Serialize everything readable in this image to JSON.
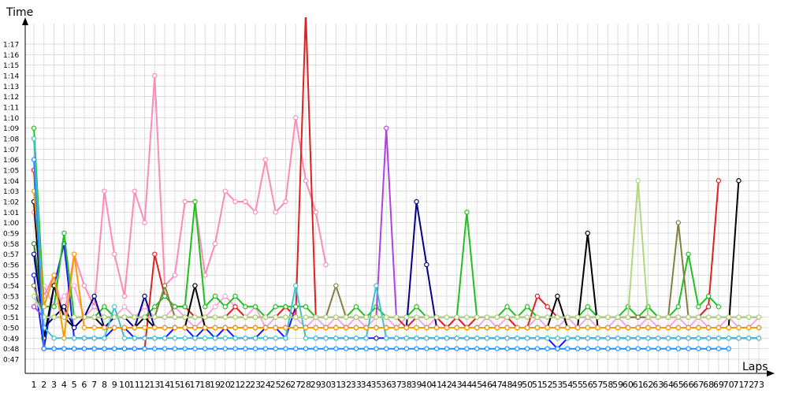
{
  "chart_data": {
    "type": "line",
    "ylabel": "Time",
    "xlabel": "Laps",
    "grid": true,
    "y_ticks": [
      "0:47",
      "0:48",
      "0:49",
      "0:50",
      "0:51",
      "0:52",
      "0:53",
      "0:54",
      "0:55",
      "0:56",
      "0:57",
      "0:58",
      "0:59",
      "1:00",
      "1:01",
      "1:02",
      "1:03",
      "1:04",
      "1:05",
      "1:06",
      "1:07",
      "1:08",
      "1:09",
      "1:10",
      "1:11",
      "1:12",
      "1:13",
      "1:14",
      "1:15",
      "1:16",
      "1:17"
    ],
    "x_tick_labels": [
      "1",
      "2",
      "3",
      "4",
      "5",
      "6",
      "7",
      "8",
      "9",
      "10",
      "11",
      "12",
      "13",
      "14",
      "15",
      "16",
      "17",
      "18",
      "19",
      "20",
      "21",
      "22",
      "23",
      "24",
      "25",
      "26",
      "27",
      "28",
      "29",
      "30",
      "31",
      "32",
      "33",
      "34",
      "35",
      "36",
      "37",
      "38",
      "39",
      "40",
      "41",
      "42",
      "43",
      "44",
      "45",
      "46",
      "47",
      "48",
      "49",
      "50",
      "51",
      "52",
      "53",
      "54",
      "55",
      "56",
      "57",
      "58",
      "59",
      "60",
      "61",
      "62",
      "63",
      "64",
      "65",
      "66",
      "67",
      "68",
      "69",
      "70",
      "71",
      "72",
      "73"
    ],
    "xlim": [
      1,
      73
    ],
    "ylim_seconds": [
      46,
      78
    ],
    "series": [
      {
        "color": "#f7a8d8",
        "values": [
          52,
          54,
          52,
          53,
          54,
          51,
          52,
          51,
          51,
          52,
          51,
          52,
          51,
          51,
          52,
          51,
          50,
          51,
          52,
          53,
          52,
          51,
          52,
          50,
          51,
          52,
          51,
          50,
          51,
          50,
          51,
          50,
          51,
          50,
          51,
          51,
          50,
          51,
          51,
          50,
          51,
          50,
          51,
          50,
          50,
          51,
          50,
          51,
          50,
          50,
          51,
          50,
          50,
          51,
          50,
          51,
          50,
          50,
          51,
          50,
          50,
          51,
          50,
          50,
          51,
          50,
          51,
          50,
          50,
          51,
          50,
          50,
          51
        ]
      },
      {
        "color": "#ff8ab8",
        "values": [
          61,
          53,
          55,
          51,
          57,
          54,
          52,
          63,
          57,
          53,
          63,
          60,
          74,
          54,
          55,
          62,
          62,
          55,
          58,
          63,
          62,
          62,
          61,
          66,
          61,
          62,
          70,
          64,
          61,
          56,
          null,
          null,
          null,
          null,
          null,
          null,
          null,
          null,
          null,
          null,
          null,
          null,
          null,
          null,
          null,
          null,
          null,
          null,
          null,
          null,
          null,
          null,
          null,
          null,
          null,
          null,
          null,
          null,
          null,
          null,
          null,
          null,
          null,
          null,
          null,
          null,
          null,
          null,
          null,
          null,
          null,
          null,
          null
        ]
      },
      {
        "color": "#1a1aff",
        "values": [
          55,
          48,
          54,
          58,
          49,
          49,
          49,
          49,
          50,
          50,
          49,
          49,
          49,
          49,
          50,
          50,
          49,
          50,
          49,
          50,
          49,
          49,
          49,
          50,
          50,
          49,
          52,
          null,
          49,
          49,
          49,
          49,
          49,
          49,
          49,
          49,
          49,
          49,
          49,
          49,
          49,
          49,
          49,
          49,
          49,
          49,
          49,
          49,
          49,
          49,
          49,
          49,
          48,
          49,
          49,
          49,
          49,
          49,
          49,
          49,
          49,
          49,
          49,
          49,
          49,
          49,
          49,
          49,
          49,
          49,
          49,
          49,
          49
        ]
      },
      {
        "color": "#e02020",
        "values": [
          65,
          48,
          48,
          48,
          48,
          48,
          48,
          48,
          48,
          48,
          48,
          48,
          57,
          53,
          52,
          52,
          51,
          51,
          51,
          51,
          52,
          51,
          51,
          51,
          51,
          52,
          51,
          80,
          51,
          51,
          51,
          51,
          51,
          51,
          51,
          51,
          51,
          50,
          51,
          51,
          51,
          50,
          51,
          50,
          51,
          51,
          51,
          51,
          50,
          50,
          53,
          52,
          51,
          51,
          51,
          51,
          51,
          51,
          51,
          51,
          51,
          51,
          51,
          51,
          51,
          51,
          51,
          52,
          64,
          null,
          null,
          null,
          null
        ]
      },
      {
        "color": "#20c020",
        "values": [
          69,
          52,
          52,
          59,
          51,
          51,
          51,
          52,
          51,
          51,
          51,
          51,
          52,
          53,
          52,
          52,
          62,
          52,
          53,
          52,
          53,
          52,
          52,
          51,
          52,
          52,
          52,
          52,
          51,
          51,
          51,
          51,
          52,
          51,
          52,
          51,
          51,
          51,
          52,
          51,
          51,
          51,
          51,
          61,
          51,
          51,
          51,
          52,
          51,
          52,
          51,
          51,
          51,
          51,
          51,
          52,
          51,
          51,
          51,
          52,
          51,
          52,
          51,
          51,
          52,
          57,
          52,
          53,
          52,
          null,
          null,
          null,
          null
        ]
      },
      {
        "color": "#2a8a2a",
        "values": [
          58,
          51,
          51,
          51,
          51,
          51,
          51,
          51,
          51,
          51,
          51,
          51,
          51,
          51,
          51,
          51,
          51,
          51,
          null,
          null,
          null,
          null,
          null,
          null,
          null,
          null,
          null,
          null,
          null,
          null,
          null,
          null,
          null,
          null,
          null,
          null,
          null,
          null,
          null,
          null,
          null,
          null,
          null,
          null,
          null,
          null,
          null,
          null,
          null,
          null,
          null,
          null,
          null,
          null,
          null,
          null,
          null,
          null,
          null,
          null,
          null,
          null,
          null,
          null,
          null,
          null,
          null,
          null,
          null,
          null,
          null,
          null,
          null
        ]
      },
      {
        "color": "#b040e0",
        "values": [
          52,
          51,
          51,
          51,
          51,
          51,
          51,
          51,
          51,
          51,
          51,
          51,
          51,
          51,
          51,
          51,
          51,
          51,
          51,
          51,
          51,
          51,
          51,
          51,
          51,
          51,
          51,
          51,
          51,
          51,
          51,
          51,
          51,
          51,
          51,
          69,
          51,
          51,
          51,
          51,
          51,
          51,
          51,
          51,
          51,
          51,
          51,
          51,
          51,
          51,
          51,
          51,
          51,
          51,
          51,
          51,
          51,
          51,
          51,
          51,
          51,
          51,
          51,
          51,
          51,
          51,
          51,
          51,
          51,
          51,
          51,
          51,
          51
        ]
      },
      {
        "color": "#000000",
        "values": [
          62,
          49,
          54,
          51,
          50,
          51,
          51,
          50,
          50,
          50,
          50,
          51,
          50,
          50,
          50,
          50,
          54,
          50,
          50,
          50,
          50,
          50,
          50,
          50,
          50,
          50,
          50,
          50,
          50,
          50,
          50,
          50,
          50,
          50,
          50,
          50,
          50,
          50,
          50,
          50,
          50,
          50,
          50,
          50,
          50,
          50,
          50,
          50,
          50,
          50,
          50,
          50,
          53,
          50,
          50,
          59,
          50,
          50,
          50,
          50,
          50,
          50,
          50,
          50,
          50,
          50,
          50,
          50,
          50,
          50,
          64,
          null,
          null
        ]
      },
      {
        "color": "#00008b",
        "values": [
          57,
          50,
          51,
          52,
          50,
          51,
          53,
          50,
          51,
          51,
          50,
          53,
          50,
          50,
          50,
          50,
          50,
          50,
          50,
          50,
          50,
          50,
          50,
          50,
          50,
          50,
          50,
          50,
          50,
          50,
          50,
          50,
          50,
          50,
          50,
          50,
          50,
          50,
          62,
          56,
          50,
          50,
          50,
          50,
          50,
          50,
          50,
          50,
          50,
          50,
          50,
          50,
          50,
          50,
          50,
          50,
          50,
          50,
          50,
          50,
          50,
          50,
          50,
          50,
          50,
          50,
          50,
          50,
          50,
          50,
          50,
          50,
          50
        ]
      },
      {
        "color": "#808040",
        "values": [
          54,
          51,
          51,
          51,
          51,
          51,
          51,
          51,
          51,
          51,
          51,
          51,
          51,
          54,
          51,
          51,
          51,
          51,
          51,
          51,
          51,
          51,
          51,
          51,
          51,
          51,
          51,
          51,
          51,
          51,
          54,
          51,
          51,
          51,
          51,
          51,
          51,
          51,
          51,
          51,
          51,
          51,
          51,
          51,
          51,
          51,
          51,
          51,
          51,
          51,
          51,
          51,
          51,
          51,
          51,
          51,
          51,
          51,
          51,
          51,
          51,
          51,
          51,
          51,
          60,
          51,
          51,
          51,
          51,
          51,
          51,
          51,
          51
        ]
      },
      {
        "color": "#40c0d0",
        "values": [
          68,
          50,
          49,
          49,
          49,
          49,
          49,
          49,
          52,
          49,
          49,
          49,
          49,
          49,
          49,
          49,
          49,
          49,
          49,
          49,
          49,
          49,
          49,
          49,
          49,
          49,
          54,
          49,
          49,
          49,
          49,
          49,
          49,
          49,
          54,
          49,
          49,
          49,
          49,
          49,
          49,
          49,
          49,
          49,
          49,
          49,
          49,
          49,
          49,
          49,
          49,
          49,
          49,
          49,
          49,
          49,
          49,
          49,
          49,
          49,
          49,
          49,
          49,
          49,
          49,
          49,
          49,
          49,
          49,
          49,
          49,
          49,
          49
        ]
      },
      {
        "color": "#b0d880",
        "values": [
          53,
          51,
          51,
          51,
          51,
          51,
          51,
          51,
          51,
          51,
          51,
          51,
          51,
          51,
          51,
          51,
          51,
          51,
          51,
          51,
          51,
          51,
          51,
          51,
          51,
          51,
          51,
          51,
          51,
          51,
          51,
          51,
          51,
          51,
          51,
          51,
          51,
          51,
          51,
          51,
          51,
          51,
          51,
          51,
          51,
          51,
          51,
          51,
          51,
          51,
          51,
          51,
          51,
          51,
          51,
          51,
          51,
          51,
          51,
          51,
          64,
          51,
          51,
          51,
          51,
          51,
          51,
          51,
          51,
          51,
          51,
          51,
          51
        ]
      },
      {
        "color": "#ff9900",
        "values": [
          63,
          52,
          55,
          49,
          57,
          50,
          50,
          50,
          50,
          50,
          50,
          50,
          50,
          50,
          50,
          50,
          50,
          50,
          50,
          50,
          50,
          50,
          50,
          50,
          50,
          50,
          50,
          50,
          50,
          50,
          50,
          50,
          50,
          50,
          50,
          50,
          50,
          50,
          50,
          50,
          50,
          50,
          50,
          50,
          50,
          50,
          50,
          50,
          50,
          50,
          50,
          50,
          50,
          50,
          50,
          50,
          50,
          50,
          50,
          50,
          50,
          50,
          50,
          50,
          50,
          50,
          50,
          50,
          50,
          50,
          50,
          50,
          50
        ]
      },
      {
        "color": "#1e90ff",
        "values": [
          66,
          48,
          48,
          48,
          48,
          48,
          48,
          48,
          48,
          48,
          48,
          48,
          48,
          48,
          48,
          48,
          48,
          48,
          48,
          48,
          48,
          48,
          48,
          48,
          48,
          48,
          48,
          48,
          48,
          48,
          48,
          48,
          48,
          48,
          48,
          48,
          48,
          48,
          48,
          48,
          48,
          48,
          48,
          48,
          48,
          48,
          48,
          48,
          48,
          48,
          48,
          48,
          48,
          48,
          48,
          48,
          48,
          48,
          48,
          48,
          48,
          48,
          48,
          48,
          48,
          48,
          48,
          48,
          48,
          48,
          null,
          null,
          null
        ]
      }
    ]
  }
}
